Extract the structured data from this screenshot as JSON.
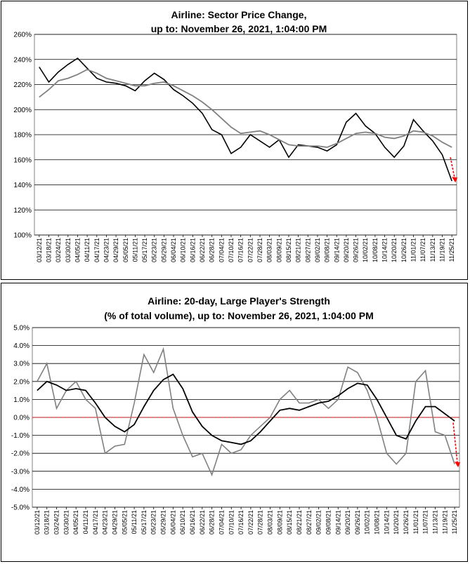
{
  "charts": [
    {
      "title_line1": "Airline: Sector Price Change,",
      "title_line2": "up to: November 26, 2021, 1:04:00 PM",
      "y_ticks": [
        "100%",
        "120%",
        "140%",
        "160%",
        "180%",
        "200%",
        "220%",
        "240%",
        "260%"
      ],
      "x_ticks": [
        "03/12/21",
        "03/18/21",
        "03/24/21",
        "03/30/21",
        "04/05/21",
        "04/11/21",
        "04/17/21",
        "04/23/21",
        "04/29/21",
        "05/05/21",
        "05/11/21",
        "05/17/21",
        "05/23/21",
        "05/29/21",
        "06/04/21",
        "06/10/21",
        "06/16/21",
        "06/22/21",
        "06/28/21",
        "07/04/21",
        "07/10/21",
        "07/16/21",
        "07/22/21",
        "07/28/21",
        "08/03/21",
        "08/09/21",
        "08/15/21",
        "08/21/21",
        "08/27/21",
        "09/02/21",
        "09/08/21",
        "09/14/21",
        "09/20/21",
        "09/26/21",
        "10/02/21",
        "10/08/21",
        "10/14/21",
        "10/20/21",
        "10/26/21",
        "11/01/21",
        "11/07/21",
        "11/13/21",
        "11/19/21",
        "11/25/21"
      ]
    },
    {
      "title_line1": "Airline: 20-day, Large Player's Strength",
      "title_line2": "(% of total volume), up to: November 26, 2021, 1:04:00 PM",
      "y_ticks": [
        "-5.0%",
        "-4.0%",
        "-3.0%",
        "-2.0%",
        "-1.0%",
        "0.0%",
        "1.0%",
        "2.0%",
        "3.0%",
        "4.0%",
        "5.0%"
      ],
      "x_ticks": [
        "03/12/21",
        "03/18/21",
        "03/24/21",
        "03/30/21",
        "04/05/21",
        "04/11/21",
        "04/17/21",
        "04/23/21",
        "04/29/21",
        "05/05/21",
        "05/11/21",
        "05/17/21",
        "05/23/21",
        "05/29/21",
        "06/04/21",
        "06/10/21",
        "06/16/21",
        "06/22/21",
        "06/28/21",
        "07/04/21",
        "07/10/21",
        "07/16/21",
        "07/22/21",
        "07/28/21",
        "08/03/21",
        "08/09/21",
        "08/15/21",
        "08/21/21",
        "08/27/21",
        "09/02/21",
        "09/08/21",
        "09/14/21",
        "09/20/21",
        "09/26/21",
        "10/02/21",
        "10/08/21",
        "10/14/21",
        "10/20/21",
        "10/26/21",
        "11/01/21",
        "11/07/21",
        "11/13/21",
        "11/19/21",
        "11/25/21"
      ]
    }
  ],
  "chart_data": [
    {
      "type": "line",
      "title": "Airline: Sector Price Change, up to: November 26, 2021, 1:04:00 PM",
      "ylim": [
        100,
        260
      ],
      "y_unit": "%",
      "grid": true,
      "colors": {
        "price": "#000000",
        "average": "#808080",
        "arrow": "#ff0000"
      },
      "x": [
        "03/12/21",
        "03/18/21",
        "03/24/21",
        "03/30/21",
        "04/05/21",
        "04/11/21",
        "04/17/21",
        "04/23/21",
        "04/29/21",
        "05/05/21",
        "05/11/21",
        "05/17/21",
        "05/23/21",
        "05/29/21",
        "06/04/21",
        "06/10/21",
        "06/16/21",
        "06/22/21",
        "06/28/21",
        "07/04/21",
        "07/10/21",
        "07/16/21",
        "07/22/21",
        "07/28/21",
        "08/03/21",
        "08/09/21",
        "08/15/21",
        "08/21/21",
        "08/27/21",
        "09/02/21",
        "09/08/21",
        "09/14/21",
        "09/20/21",
        "09/26/21",
        "10/02/21",
        "10/08/21",
        "10/14/21",
        "10/20/21",
        "10/26/21",
        "11/01/21",
        "11/07/21",
        "11/13/21",
        "11/19/21",
        "11/25/21"
      ],
      "series": [
        {
          "values": [
            234,
            222,
            230,
            236,
            241,
            233,
            225,
            222,
            221,
            219,
            215,
            223,
            229,
            224,
            216,
            211,
            205,
            197,
            184,
            180,
            165,
            170,
            180,
            175,
            170,
            176,
            162,
            172,
            171,
            170,
            167,
            172,
            190,
            197,
            187,
            181,
            170,
            162,
            171,
            192,
            183,
            175,
            164,
            143
          ]
        },
        {
          "values": [
            210,
            216,
            223,
            225,
            228,
            232,
            229,
            225,
            223,
            221,
            219,
            219,
            221,
            222,
            219,
            215,
            211,
            206,
            200,
            193,
            186,
            181,
            182,
            183,
            180,
            176,
            172,
            171,
            171,
            171,
            170,
            173,
            177,
            181,
            182,
            181,
            178,
            177,
            179,
            183,
            182,
            179,
            174,
            170
          ]
        }
      ],
      "arrow": {
        "from": 162,
        "to": 143
      }
    },
    {
      "type": "line",
      "title": "Airline: 20-day, Large Player's Strength (% of total volume), up to: November 26, 2021, 1:04:00 PM",
      "ylim": [
        -5,
        5
      ],
      "y_unit": "%",
      "grid": true,
      "zero_line_color": "#ff0000",
      "colors": {
        "strength": "#808080",
        "average": "#000000",
        "arrow": "#ff0000"
      },
      "x": [
        "03/12/21",
        "03/18/21",
        "03/24/21",
        "03/30/21",
        "04/05/21",
        "04/11/21",
        "04/17/21",
        "04/23/21",
        "04/29/21",
        "05/05/21",
        "05/11/21",
        "05/17/21",
        "05/23/21",
        "05/29/21",
        "06/04/21",
        "06/10/21",
        "06/16/21",
        "06/22/21",
        "06/28/21",
        "07/04/21",
        "07/10/21",
        "07/16/21",
        "07/22/21",
        "07/28/21",
        "08/03/21",
        "08/09/21",
        "08/15/21",
        "08/21/21",
        "08/27/21",
        "09/02/21",
        "09/08/21",
        "09/14/21",
        "09/20/21",
        "09/26/21",
        "10/02/21",
        "10/08/21",
        "10/14/21",
        "10/20/21",
        "10/26/21",
        "11/01/21",
        "11/07/21",
        "11/13/21",
        "11/19/21",
        "11/25/21"
      ],
      "series": [
        {
          "values": [
            2.0,
            3.0,
            0.5,
            1.5,
            2.0,
            1.0,
            0.5,
            -2.0,
            -1.6,
            -1.5,
            0.8,
            3.5,
            2.5,
            3.8,
            0.5,
            -1.0,
            -2.2,
            -2.0,
            -3.2,
            -1.5,
            -2.0,
            -1.8,
            -1.0,
            -0.5,
            0.0,
            1.0,
            1.5,
            0.8,
            0.8,
            1.0,
            0.5,
            1.0,
            2.8,
            2.5,
            1.5,
            0.0,
            -2.0,
            -2.6,
            -2.0,
            2.0,
            2.6,
            -0.8,
            -1.0,
            -2.6
          ]
        },
        {
          "values": [
            1.5,
            2.0,
            1.8,
            1.5,
            1.6,
            1.5,
            0.8,
            0.0,
            -0.5,
            -0.8,
            -0.4,
            0.6,
            1.5,
            2.1,
            2.4,
            1.6,
            0.3,
            -0.5,
            -1.0,
            -1.3,
            -1.4,
            -1.5,
            -1.3,
            -0.8,
            -0.2,
            0.4,
            0.5,
            0.4,
            0.6,
            0.8,
            0.9,
            1.2,
            1.6,
            1.9,
            1.8,
            1.0,
            0.0,
            -1.0,
            -1.2,
            -0.2,
            0.6,
            0.6,
            0.2,
            -0.2
          ]
        }
      ],
      "arrow": {
        "from": -0.3,
        "to": -2.7
      }
    }
  ]
}
